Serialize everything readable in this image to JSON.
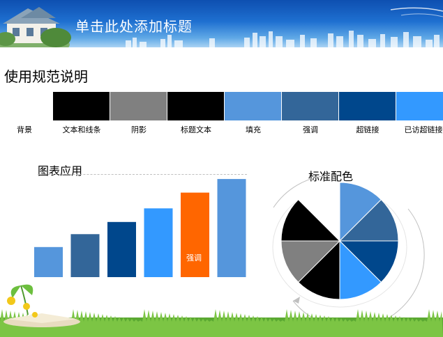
{
  "header": {
    "title": "单击此处添加标题"
  },
  "section": {
    "title": "使用规范说明"
  },
  "swatches": [
    {
      "label": "背景",
      "color": "#ffffff"
    },
    {
      "label": "文本和线条",
      "color": "#000000"
    },
    {
      "label": "阴影",
      "color": "#808080"
    },
    {
      "label": "标题文本",
      "color": "#000000"
    },
    {
      "label": "填充",
      "color": "#5596dc"
    },
    {
      "label": "强调",
      "color": "#336699"
    },
    {
      "label": "超链接",
      "color": "#00478c"
    },
    {
      "label": "已访超链接",
      "color": "#3399ff"
    }
  ],
  "chart": {
    "title": "图表应用",
    "highlight_label": "强调"
  },
  "pie": {
    "title": "标准配色"
  },
  "chart_data": {
    "type": "bar",
    "categories": [
      "",
      "",
      "",
      "",
      "",
      ""
    ],
    "values": [
      42,
      60,
      77,
      96,
      118,
      137
    ],
    "colors": [
      "#5596dc",
      "#336699",
      "#00478c",
      "#3399ff",
      "#ff6600",
      "#5596dc"
    ],
    "title": "图表应用",
    "xlabel": "",
    "ylabel": "",
    "ylim": [
      0,
      140
    ],
    "highlight_index": 4
  },
  "pie_data": {
    "type": "pie",
    "values": [
      1,
      1,
      1,
      1,
      1,
      1,
      1,
      1
    ],
    "colors": [
      "#5596dc",
      "#336699",
      "#00478c",
      "#3399ff",
      "#000000",
      "#808080",
      "#000000",
      "#ffffff"
    ]
  }
}
